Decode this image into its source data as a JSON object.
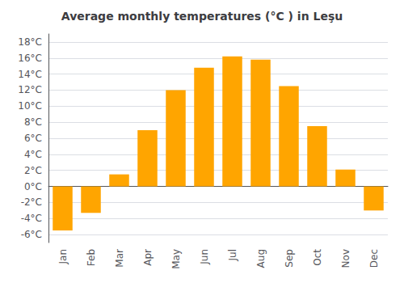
{
  "chart_data": {
    "type": "bar",
    "title": "Average monthly temperatures (°C ) in Leşu",
    "categories": [
      "Jan",
      "Feb",
      "Mar",
      "Apr",
      "May",
      "Jun",
      "Jul",
      "Aug",
      "Sep",
      "Oct",
      "Nov",
      "Dec"
    ],
    "values": [
      -5.5,
      -3.3,
      1.5,
      7.0,
      12.0,
      14.8,
      16.2,
      15.8,
      12.5,
      7.5,
      2.1,
      -3.0
    ],
    "color": "#FFA500",
    "ylim": [
      -7,
      19
    ],
    "yticks": [
      {
        "value": -6,
        "label": "-6°C"
      },
      {
        "value": -4,
        "label": "-4°C"
      },
      {
        "value": -2,
        "label": "-2°C"
      },
      {
        "value": 0,
        "label": "0°C"
      },
      {
        "value": 2,
        "label": "2°C"
      },
      {
        "value": 4,
        "label": "4°C"
      },
      {
        "value": 6,
        "label": "6°C"
      },
      {
        "value": 8,
        "label": "8°C"
      },
      {
        "value": 10,
        "label": "10°C"
      },
      {
        "value": 12,
        "label": "12°C"
      },
      {
        "value": 14,
        "label": "14°C"
      },
      {
        "value": 16,
        "label": "16°C"
      },
      {
        "value": 18,
        "label": "18°C"
      }
    ],
    "grid": true
  }
}
